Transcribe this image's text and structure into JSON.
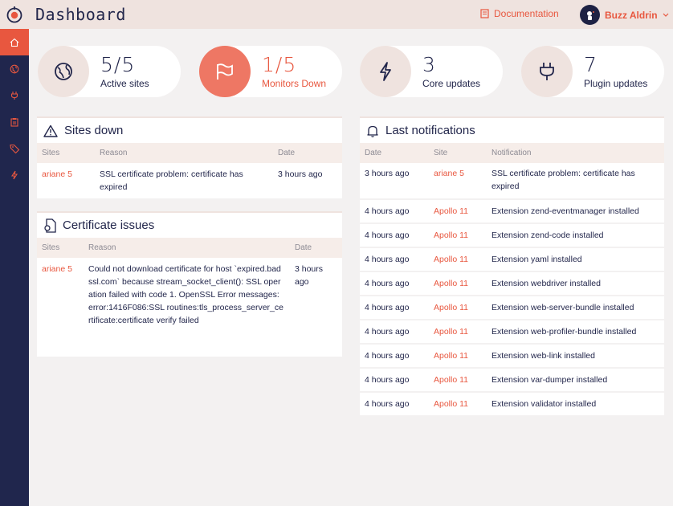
{
  "header": {
    "title": "Dashboard",
    "docs_label": "Documentation",
    "user_name": "Buzz Aldrin"
  },
  "colors": {
    "accent": "#e8573f",
    "navy": "#20264d",
    "beige": "#efe3df"
  },
  "sidebar": {
    "items": [
      {
        "icon": "home-icon",
        "active": true
      },
      {
        "icon": "globe-icon"
      },
      {
        "icon": "plug-icon"
      },
      {
        "icon": "clipboard-icon"
      },
      {
        "icon": "tags-icon"
      },
      {
        "icon": "bolt-icon"
      }
    ]
  },
  "stats": [
    {
      "value": "5/5",
      "label": "Active sites",
      "icon": "globe-icon"
    },
    {
      "value": "1/5",
      "label": "Monitors Down",
      "icon": "flag-icon",
      "alert": true
    },
    {
      "value": "3",
      "label": "Core updates",
      "icon": "bolt-icon"
    },
    {
      "value": "7",
      "label": "Plugin updates",
      "icon": "plug-icon"
    }
  ],
  "sites_down": {
    "title": "Sites down",
    "headers": {
      "sites": "Sites",
      "reason": "Reason",
      "date": "Date"
    },
    "rows": [
      {
        "site": "ariane 5",
        "reason": "SSL certificate problem: certificate has expired",
        "date": "3 hours ago"
      }
    ]
  },
  "cert_issues": {
    "title": "Certificate issues",
    "headers": {
      "sites": "Sites",
      "reason": "Reason",
      "date": "Date"
    },
    "rows": [
      {
        "site": "ariane 5",
        "reason": "Could not download certificate for host `expired.badssl.com` because stream_socket_client(): SSL operation failed with code 1. OpenSSL Error messages: error:1416F086:SSL routines:tls_process_server_certificate:certificate verify failed",
        "date": "3 hours ago"
      }
    ]
  },
  "notifications": {
    "title": "Last notifications",
    "headers": {
      "date": "Date",
      "site": "Site",
      "notification": "Notification"
    },
    "rows": [
      {
        "date": "3 hours ago",
        "site": "ariane 5",
        "text": "SSL certificate problem: certificate has expired"
      },
      {
        "date": "4 hours ago",
        "site": "Apollo 11",
        "text": "Extension zend-eventmanager installed"
      },
      {
        "date": "4 hours ago",
        "site": "Apollo 11",
        "text": "Extension zend-code installed"
      },
      {
        "date": "4 hours ago",
        "site": "Apollo 11",
        "text": "Extension yaml installed"
      },
      {
        "date": "4 hours ago",
        "site": "Apollo 11",
        "text": "Extension webdriver installed"
      },
      {
        "date": "4 hours ago",
        "site": "Apollo 11",
        "text": "Extension web-server-bundle installed"
      },
      {
        "date": "4 hours ago",
        "site": "Apollo 11",
        "text": "Extension web-profiler-bundle installed"
      },
      {
        "date": "4 hours ago",
        "site": "Apollo 11",
        "text": "Extension web-link installed"
      },
      {
        "date": "4 hours ago",
        "site": "Apollo 11",
        "text": "Extension var-dumper installed"
      },
      {
        "date": "4 hours ago",
        "site": "Apollo 11",
        "text": "Extension validator installed"
      }
    ]
  }
}
